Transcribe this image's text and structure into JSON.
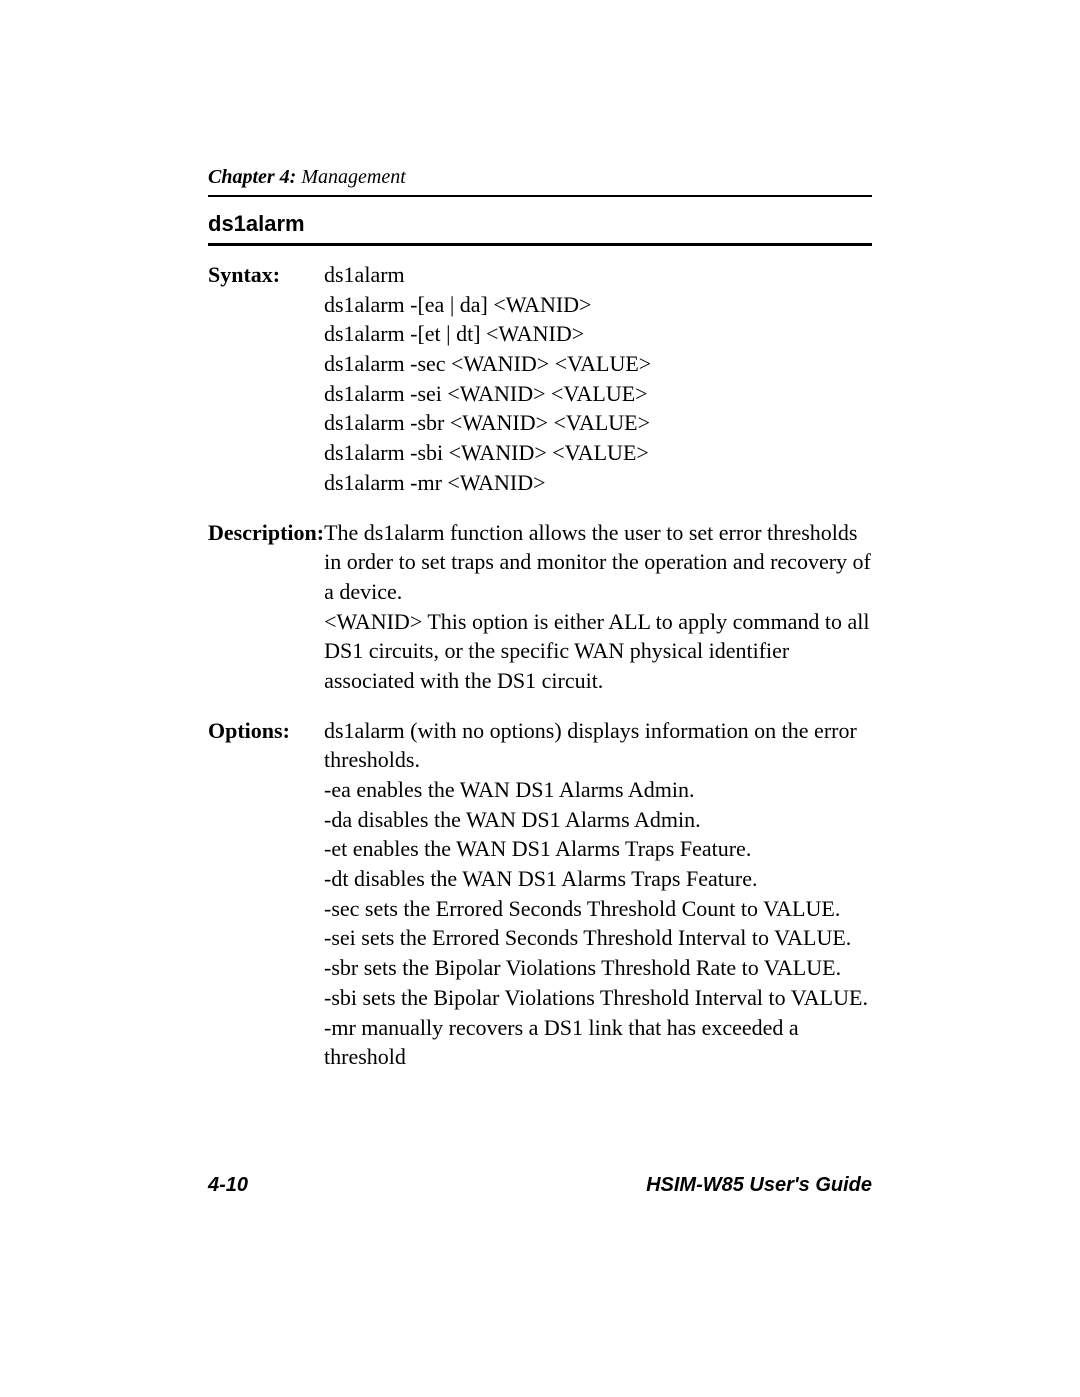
{
  "header": {
    "chapter_prefix": "Chapter 4:",
    "chapter_name": " Management"
  },
  "command_title": "ds1alarm",
  "sections": {
    "syntax": {
      "label": "Syntax:",
      "lines": [
        "ds1alarm",
        "ds1alarm -[ea | da] <WANID>",
        "ds1alarm -[et | dt] <WANID>",
        "ds1alarm -sec <WANID> <VALUE>",
        "ds1alarm -sei <WANID> <VALUE>",
        "ds1alarm -sbr <WANID> <VALUE>",
        "ds1alarm -sbi <WANID> <VALUE>",
        "ds1alarm -mr <WANID>"
      ]
    },
    "description": {
      "label": "Description:",
      "lines": [
        "The ds1alarm function allows the user to set error thresholds in order to set traps and monitor the operation and recovery of a device.",
        "<WANID> This option is either ALL to apply command to all DS1 circuits, or the specific WAN physical identifier associated with the DS1 circuit."
      ]
    },
    "options": {
      "label": "Options:",
      "lines": [
        "ds1alarm (with no options) displays information on the error thresholds.",
        "-ea enables the WAN DS1 Alarms Admin.",
        "-da disables the WAN DS1 Alarms Admin.",
        "-et enables the WAN DS1 Alarms Traps Feature.",
        "-dt disables the WAN DS1 Alarms Traps Feature.",
        "-sec sets the Errored Seconds Threshold Count to VALUE.",
        "-sei sets the Errored Seconds Threshold Interval to VALUE.",
        "-sbr sets the Bipolar Violations Threshold Rate to VALUE.",
        "-sbi sets the Bipolar Violations Threshold Interval to VALUE.",
        "-mr manually recovers a DS1 link that has exceeded a threshold"
      ]
    }
  },
  "footer": {
    "page_number": "4-10",
    "guide_title": "HSIM-W85 User's Guide"
  }
}
